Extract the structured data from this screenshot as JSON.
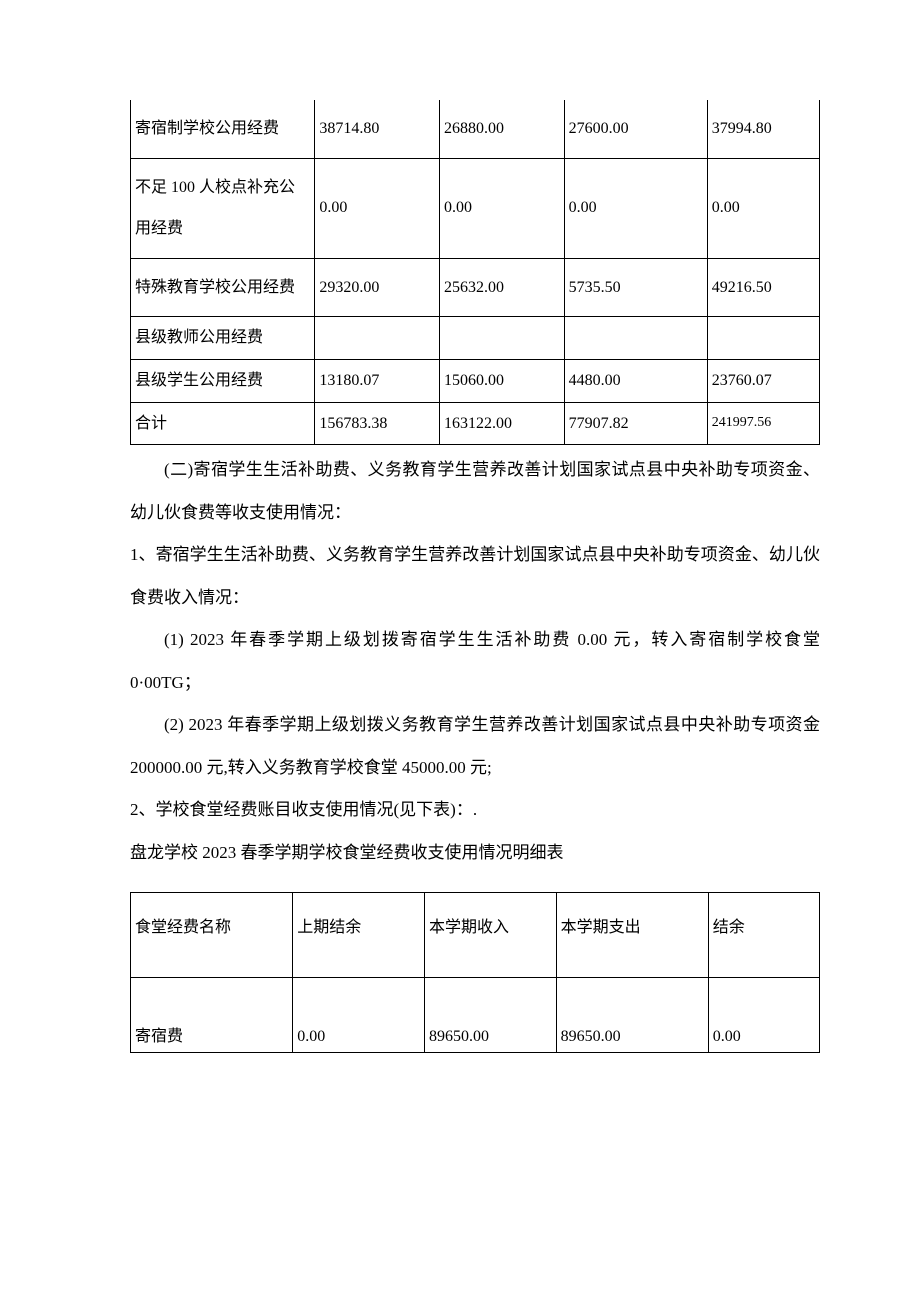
{
  "table1": {
    "rows": [
      {
        "label": "寄宿制学校公用经费",
        "c2": "38714.80",
        "c3": "26880.00",
        "c4": "27600.00",
        "c5": "37994.80",
        "multiline": true
      },
      {
        "label": "不足 100 人校点补充公用经费",
        "c2": "0.00",
        "c3": "0.00",
        "c4": "0.00",
        "c5": "0.00",
        "multiline": true
      },
      {
        "label": "特殊教育学校公用经费",
        "c2": "29320.00",
        "c3": "25632.00",
        "c4": "5735.50",
        "c5": "49216.50",
        "multiline": true
      },
      {
        "label": "县级教师公用经费",
        "c2": "",
        "c3": "",
        "c4": "",
        "c5": "",
        "multiline": false
      },
      {
        "label": "县级学生公用经费",
        "c2": "13180.07",
        "c3": "15060.00",
        "c4": "4480.00",
        "c5": "23760.07",
        "multiline": false
      },
      {
        "label": "合计",
        "c2": "156783.38",
        "c3": "163122.00",
        "c4": "77907.82",
        "c5": "241997.56",
        "multiline": false,
        "small_last": true
      }
    ]
  },
  "prose": {
    "p1": "(二)寄宿学生生活补助费、义务教育学生营养改善计划国家试点县中央补助专项资金、幼儿伙食费等收支使用情况：",
    "p2": "1、寄宿学生生活补助费、义务教育学生营养改善计划国家试点县中央补助专项资金、幼儿伙食费收入情况：",
    "p3": "(1)   2023 年春季学期上级划拨寄宿学生生活补助费 0.00 元，转入寄宿制学校食堂 0·00TG；",
    "p4": "(2)   2023 年春季学期上级划拨义务教育学生营养改善计划国家试点县中央补助专项资金 200000.00 元,转入义务教育学校食堂 45000.00 元;",
    "p5": "2、学校食堂经费账目收支使用情况(见下表)：.",
    "p6": "盘龙学校 2023 春季学期学校食堂经费收支使用情况明细表"
  },
  "table2": {
    "header": {
      "c1": "食堂经费名称",
      "c2": "上期结余",
      "c3": "本学期收入",
      "c4": "本学期支出",
      "c5": "结余"
    },
    "row": {
      "c1": "寄宿费",
      "c2": "0.00",
      "c3": "89650.00",
      "c4": "89650.00",
      "c5": "0.00"
    }
  }
}
